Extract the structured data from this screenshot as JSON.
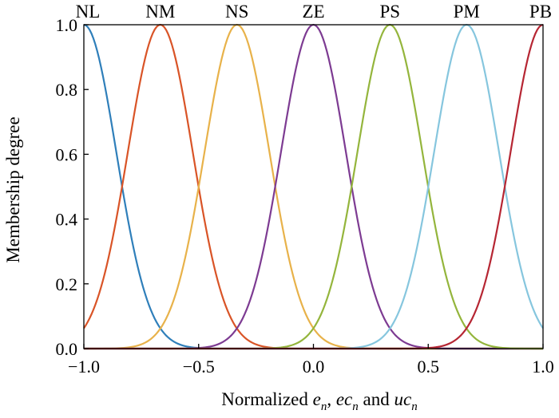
{
  "chart_data": {
    "type": "line",
    "ylabel": "Membership  degree",
    "xlabel": {
      "prefix": "Normalized ",
      "v1": "e",
      "s1": "n",
      "sep": ", ",
      "v2": "ec",
      "s2": "n",
      "mid": " and ",
      "v3": "uc",
      "s3": "n"
    },
    "xlim": [
      -1.0,
      1.0
    ],
    "ylim": [
      0.0,
      1.0
    ],
    "xticks": [
      -1.0,
      -0.5,
      0.0,
      0.5,
      1.0
    ],
    "xtick_labels": [
      "−1.0",
      "−0.5",
      "0.0",
      "0.5",
      "1.0"
    ],
    "yticks": [
      0.0,
      0.2,
      0.4,
      0.6,
      0.8,
      1.0
    ],
    "ytick_labels": [
      "0.0",
      "0.2",
      "0.4",
      "0.6",
      "0.8",
      "1.0"
    ],
    "membership_shape": "gaussian",
    "sigma": 0.1415,
    "series": [
      {
        "name": "NL",
        "center": -1.0,
        "color": "#2f7fba"
      },
      {
        "name": "NM",
        "center": -0.667,
        "color": "#d95427"
      },
      {
        "name": "NS",
        "center": -0.333,
        "color": "#e8b24a"
      },
      {
        "name": "ZE",
        "center": 0.0,
        "color": "#7d3b92"
      },
      {
        "name": "PS",
        "center": 0.333,
        "color": "#94b53c"
      },
      {
        "name": "PM",
        "center": 0.667,
        "color": "#86c6de"
      },
      {
        "name": "PB",
        "center": 1.0,
        "color": "#b62633"
      }
    ]
  }
}
